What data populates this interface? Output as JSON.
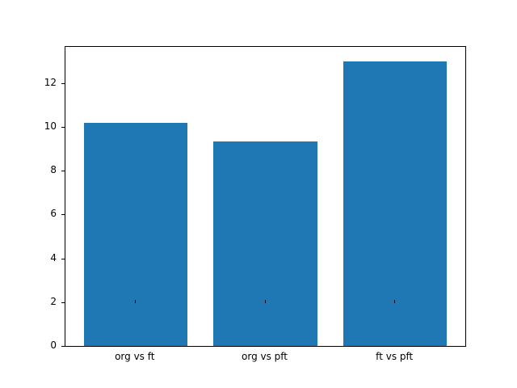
{
  "chart_data": {
    "type": "bar",
    "categories": [
      "org vs ft",
      "org vs pft",
      "ft vs pft"
    ],
    "values": [
      10.2,
      9.35,
      13.0
    ],
    "title": "",
    "xlabel": "",
    "ylabel": "",
    "ylim": [
      0,
      13.65
    ],
    "xlim": [
      -0.54,
      2.54
    ],
    "yticks": [
      0,
      2,
      4,
      6,
      8,
      10,
      12
    ],
    "bar_width": 0.8,
    "bar_color": "#1f77b4",
    "grid": false,
    "legend": null,
    "background_color": "#ffffff",
    "spine_color": "#000000"
  }
}
